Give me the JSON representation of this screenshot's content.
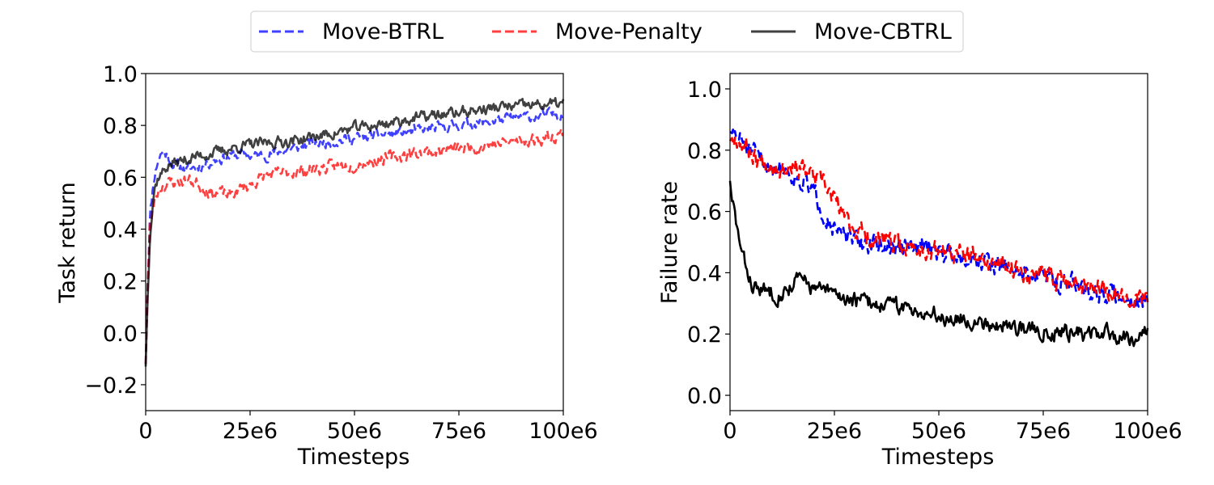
{
  "legend": {
    "position": "top-center",
    "entries": [
      {
        "label": "Move-BTRL",
        "color": "#0000ff",
        "style": "dashed"
      },
      {
        "label": "Move-Penalty",
        "color": "#ff0000",
        "style": "dashed"
      },
      {
        "label": "Move-CBTRL",
        "color": "#000000",
        "style": "solid"
      }
    ]
  },
  "chart_data": [
    {
      "type": "line",
      "title": "",
      "xlabel": "Timesteps",
      "ylabel": "Task return",
      "xlim": [
        0,
        100
      ],
      "ylim": [
        -0.3,
        1.0
      ],
      "xticks": [
        0,
        25,
        50,
        75,
        100
      ],
      "xtick_labels": [
        "0",
        "25e6",
        "50e6",
        "75e6",
        "100e6"
      ],
      "yticks": [
        -0.2,
        0.0,
        0.2,
        0.4,
        0.6,
        0.8,
        1.0
      ],
      "ytick_labels": [
        "−0.2",
        "0.0",
        "0.2",
        "0.4",
        "0.6",
        "0.8",
        "1.0"
      ],
      "grid": false,
      "series": [
        {
          "name": "Move-BTRL",
          "color": "#0000ff",
          "opacity": 0.75,
          "dash": true,
          "noise": 0.008,
          "seed": 11,
          "x": [
            0,
            0.5,
            1,
            2,
            3,
            4,
            5,
            6,
            8,
            10,
            12,
            14,
            17,
            20,
            23,
            26,
            30,
            35,
            40,
            45,
            50,
            55,
            60,
            65,
            70,
            75,
            80,
            85,
            90,
            95,
            100
          ],
          "values": [
            -0.12,
            0.2,
            0.45,
            0.6,
            0.67,
            0.7,
            0.69,
            0.66,
            0.64,
            0.63,
            0.64,
            0.65,
            0.67,
            0.68,
            0.69,
            0.68,
            0.69,
            0.71,
            0.73,
            0.74,
            0.75,
            0.76,
            0.77,
            0.78,
            0.79,
            0.8,
            0.81,
            0.82,
            0.83,
            0.84,
            0.845
          ]
        },
        {
          "name": "Move-Penalty",
          "color": "#ff0000",
          "opacity": 0.75,
          "dash": true,
          "noise": 0.009,
          "seed": 23,
          "x": [
            0,
            0.5,
            1,
            2,
            3,
            4,
            6,
            8,
            10,
            12,
            14,
            15,
            16,
            18,
            20,
            22,
            25,
            28,
            30,
            35,
            40,
            45,
            50,
            55,
            60,
            65,
            70,
            75,
            80,
            85,
            90,
            95,
            100
          ],
          "values": [
            -0.12,
            0.2,
            0.4,
            0.5,
            0.55,
            0.57,
            0.58,
            0.585,
            0.59,
            0.58,
            0.56,
            0.55,
            0.54,
            0.54,
            0.53,
            0.55,
            0.57,
            0.6,
            0.61,
            0.62,
            0.63,
            0.64,
            0.65,
            0.665,
            0.68,
            0.695,
            0.7,
            0.71,
            0.72,
            0.73,
            0.74,
            0.75,
            0.77
          ]
        },
        {
          "name": "Move-CBTRL",
          "color": "#000000",
          "opacity": 0.75,
          "dash": false,
          "noise": 0.008,
          "seed": 37,
          "x": [
            0,
            0.5,
            1,
            2,
            3,
            4,
            5,
            6,
            8,
            10,
            12,
            15,
            18,
            20,
            23,
            25,
            28,
            30,
            35,
            40,
            45,
            50,
            55,
            60,
            65,
            70,
            75,
            80,
            85,
            90,
            95,
            100
          ],
          "values": [
            -0.13,
            0.15,
            0.38,
            0.55,
            0.6,
            0.62,
            0.64,
            0.65,
            0.66,
            0.67,
            0.68,
            0.69,
            0.7,
            0.71,
            0.72,
            0.725,
            0.73,
            0.735,
            0.74,
            0.755,
            0.77,
            0.79,
            0.8,
            0.815,
            0.83,
            0.84,
            0.85,
            0.86,
            0.87,
            0.875,
            0.88,
            0.885
          ]
        }
      ]
    },
    {
      "type": "line",
      "title": "",
      "xlabel": "Timesteps",
      "ylabel": "Failure rate",
      "xlim": [
        0,
        100
      ],
      "ylim": [
        -0.05,
        1.05
      ],
      "xticks": [
        0,
        25,
        50,
        75,
        100
      ],
      "xtick_labels": [
        "0",
        "25e6",
        "50e6",
        "75e6",
        "100e6"
      ],
      "yticks": [
        0.0,
        0.2,
        0.4,
        0.6,
        0.8,
        1.0
      ],
      "ytick_labels": [
        "0.0",
        "0.2",
        "0.4",
        "0.6",
        "0.8",
        "1.0"
      ],
      "grid": false,
      "series": [
        {
          "name": "Move-BTRL",
          "color": "#0000ff",
          "opacity": 1,
          "dash": true,
          "noise": 0.012,
          "seed": 51,
          "x": [
            0,
            1,
            2,
            4,
            6,
            8,
            10,
            12,
            14,
            16,
            18,
            20,
            22,
            24,
            25,
            27,
            30,
            35,
            40,
            45,
            48,
            50,
            55,
            60,
            65,
            70,
            75,
            80,
            85,
            90,
            95,
            100
          ],
          "values": [
            0.86,
            0.85,
            0.84,
            0.81,
            0.78,
            0.76,
            0.75,
            0.74,
            0.73,
            0.71,
            0.69,
            0.66,
            0.61,
            0.57,
            0.54,
            0.52,
            0.5,
            0.49,
            0.48,
            0.48,
            0.49,
            0.47,
            0.46,
            0.44,
            0.42,
            0.4,
            0.39,
            0.37,
            0.35,
            0.33,
            0.32,
            0.3
          ]
        },
        {
          "name": "Move-Penalty",
          "color": "#ff0000",
          "opacity": 1,
          "dash": true,
          "noise": 0.012,
          "seed": 67,
          "x": [
            0,
            1,
            2,
            4,
            6,
            8,
            10,
            12,
            14,
            16,
            18,
            20,
            22,
            24,
            26,
            28,
            30,
            35,
            40,
            45,
            50,
            55,
            60,
            65,
            70,
            75,
            80,
            85,
            90,
            95,
            100
          ],
          "values": [
            0.83,
            0.85,
            0.84,
            0.81,
            0.78,
            0.76,
            0.76,
            0.75,
            0.75,
            0.75,
            0.73,
            0.71,
            0.69,
            0.66,
            0.62,
            0.57,
            0.54,
            0.51,
            0.49,
            0.48,
            0.47,
            0.46,
            0.44,
            0.42,
            0.41,
            0.39,
            0.38,
            0.37,
            0.35,
            0.33,
            0.31
          ]
        },
        {
          "name": "Move-CBTRL",
          "color": "#000000",
          "opacity": 1,
          "dash": false,
          "noise": 0.01,
          "seed": 83,
          "x": [
            0,
            0.5,
            1,
            2,
            3,
            4,
            5,
            6,
            8,
            10,
            12,
            14,
            16,
            18,
            20,
            22,
            25,
            30,
            35,
            40,
            45,
            50,
            55,
            60,
            65,
            70,
            75,
            80,
            85,
            90,
            95,
            100
          ],
          "values": [
            0.7,
            0.63,
            0.6,
            0.52,
            0.45,
            0.41,
            0.37,
            0.35,
            0.34,
            0.34,
            0.33,
            0.35,
            0.38,
            0.37,
            0.35,
            0.34,
            0.33,
            0.31,
            0.3,
            0.29,
            0.28,
            0.26,
            0.25,
            0.24,
            0.23,
            0.22,
            0.21,
            0.21,
            0.2,
            0.2,
            0.19,
            0.2
          ]
        }
      ]
    }
  ]
}
